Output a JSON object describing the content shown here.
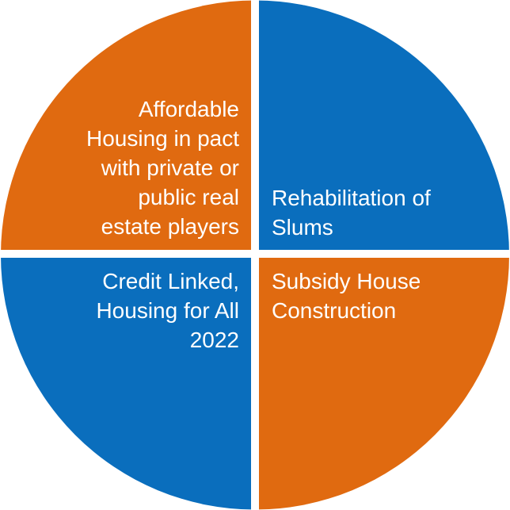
{
  "quadrants": [
    {
      "id": "top-left",
      "label": "Affordable\nHousing in pact\nwith private or\npublic real\nestate players",
      "color": "#E06A10"
    },
    {
      "id": "top-right",
      "label": "Rehabilitation of\nSlums",
      "color": "#0A6EBD"
    },
    {
      "id": "bottom-left",
      "label": "Credit Linked,\nHousing for All\n2022",
      "color": "#0A6EBD"
    },
    {
      "id": "bottom-right",
      "label": "Subsidy House\nConstruction",
      "color": "#E06A10"
    }
  ],
  "colors": {
    "orange": "#E06A10",
    "blue": "#0A6EBD",
    "divider": "#ffffff"
  }
}
